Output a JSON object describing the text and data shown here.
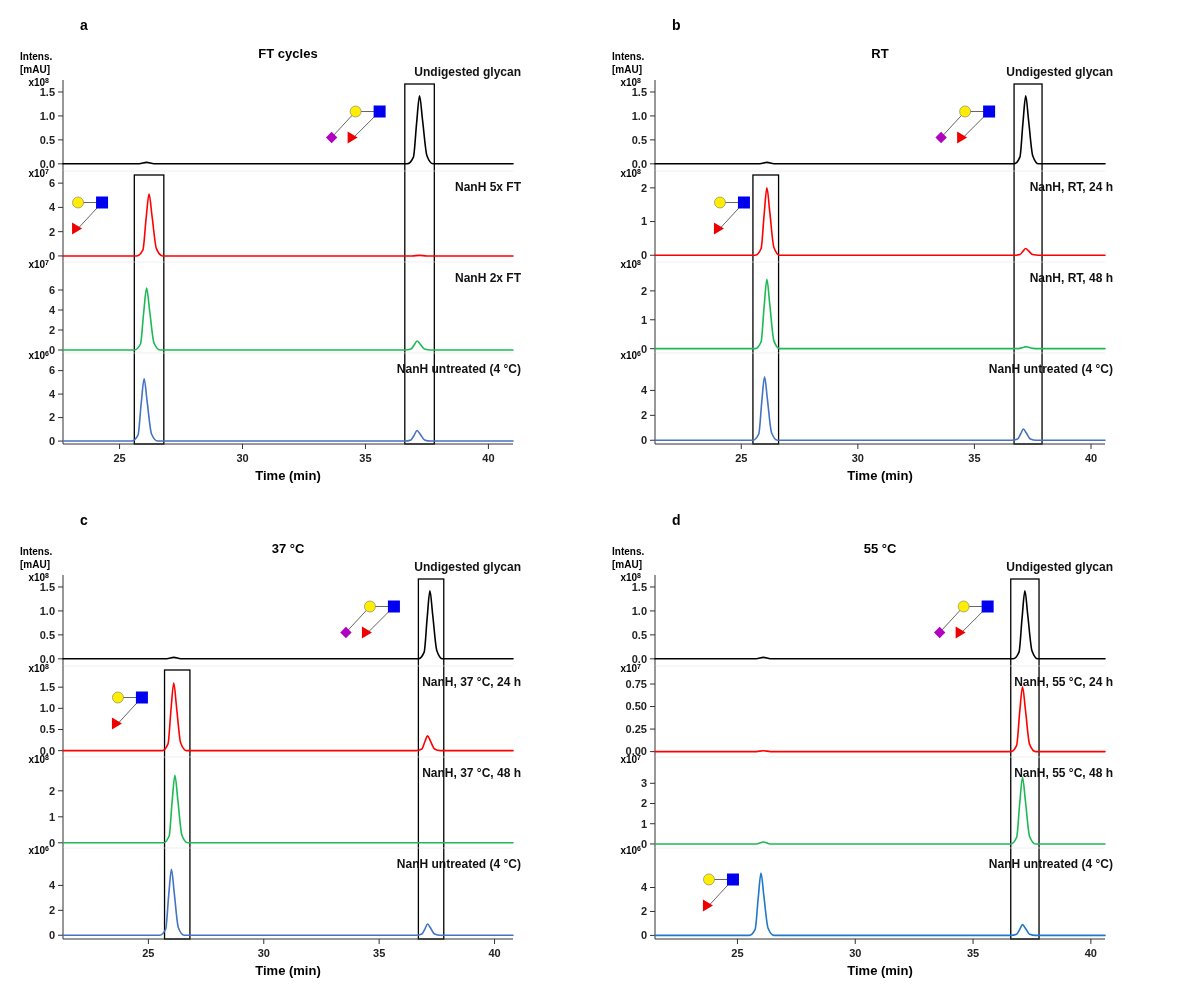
{
  "chart_data": [
    {
      "type": "line",
      "title": "FT cycles",
      "annotations": [
        "a",
        "Intens. [mAU]"
      ],
      "ylabel": "x10$^{8}$",
      "xlim": [
        22.7,
        41
      ],
      "ylim": [
        -0.15,
        1.75
      ],
      "yticks": [
        {
          "value": 0,
          "label": "0.0"
        },
        {
          "value": 0.5,
          "label": "0.5"
        },
        {
          "value": 1,
          "label": "1.0"
        },
        {
          "value": 1.5,
          "label": "1.5"
        }
      ],
      "tick_labels": "y",
      "x": [
        22.7,
        25.8,
        26.1,
        26.4,
        36.7,
        36.95,
        37.08,
        37.2,
        37.32,
        37.5,
        37.75,
        41
      ],
      "series": [
        {
          "name": "Undigested glycan",
          "color": "#000000",
          "values": [
            0,
            0,
            0.03,
            0,
            0,
            0.14,
            0.85,
            1.42,
            0.92,
            0.17,
            0,
            0
          ]
        }
      ]
    },
    {
      "type": "line",
      "ylabel": "x10$^{7}$",
      "xlim": [
        22.7,
        41
      ],
      "ylim": [
        -0.5,
        7
      ],
      "yticks": [
        0,
        2,
        4,
        6
      ],
      "tick_labels": "y",
      "x": [
        22.7,
        25.7,
        25.95,
        26.08,
        26.2,
        26.32,
        26.5,
        26.75,
        36.9,
        37.2,
        37.5,
        41
      ],
      "series": [
        {
          "name": "NanH 5x FT",
          "color": "#ff0000",
          "values": [
            0,
            0,
            0.5,
            3.1,
            5.1,
            3.3,
            0.6,
            0,
            0,
            0.05,
            0,
            0
          ]
        }
      ]
    },
    {
      "type": "line",
      "ylabel": "x10$^{7}$",
      "xlim": [
        22.7,
        41
      ],
      "ylim": [
        -0.3,
        8.8
      ],
      "yticks": [
        0,
        2,
        4,
        6
      ],
      "tick_labels": "y",
      "x": [
        22.7,
        25.6,
        25.85,
        25.98,
        26.1,
        26.22,
        26.4,
        26.65,
        36.6,
        36.85,
        36.98,
        37.1,
        37.22,
        37.4,
        37.65,
        41
      ],
      "series": [
        {
          "name": "NanH 2x FT",
          "color": "#1db954",
          "values": [
            0,
            0,
            0.6,
            3.7,
            6.2,
            4.0,
            0.7,
            0,
            0,
            0.1,
            0.5,
            0.9,
            0.6,
            0.1,
            0,
            0
          ]
        }
      ]
    },
    {
      "type": "line",
      "ylabel": "x10$^{6}$",
      "xlabel": "Time (min)",
      "xlim": [
        22.7,
        41
      ],
      "ylim": [
        -0.25,
        7.5
      ],
      "yticks": [
        0,
        2,
        4,
        6
      ],
      "xticks": [
        25,
        30,
        35,
        40
      ],
      "x": [
        22.7,
        25.5,
        25.75,
        25.88,
        26.0,
        26.12,
        26.3,
        26.55,
        36.6,
        36.85,
        36.98,
        37.1,
        37.22,
        37.4,
        37.65,
        41
      ],
      "series": [
        {
          "name": "NanH untreated (4 °C)",
          "color": "#4472c4",
          "values": [
            0,
            0,
            0.5,
            3.2,
            5.3,
            3.4,
            0.6,
            0,
            0,
            0.1,
            0.5,
            0.9,
            0.6,
            0.1,
            0,
            0
          ]
        }
      ]
    },
    {
      "type": "line",
      "title": "RT",
      "annotations": [
        "b",
        "Intens. [mAU]"
      ],
      "ylabel": "x10$^{8}$",
      "xlim": [
        21.3,
        40.6
      ],
      "ylim": [
        -0.15,
        1.75
      ],
      "yticks": [
        {
          "value": 0,
          "label": "0.0"
        },
        {
          "value": 0.5,
          "label": "0.5"
        },
        {
          "value": 1,
          "label": "1.0"
        },
        {
          "value": 1.5,
          "label": "1.5"
        }
      ],
      "tick_labels": "y",
      "x": [
        21.3,
        25.8,
        26.1,
        26.4,
        36.7,
        36.95,
        37.08,
        37.2,
        37.32,
        37.5,
        37.75,
        40.6
      ],
      "series": [
        {
          "name": "Undigested glycan",
          "color": "#000000",
          "values": [
            0,
            0,
            0.03,
            0,
            0,
            0.14,
            0.85,
            1.42,
            0.92,
            0.17,
            0,
            0
          ]
        }
      ]
    },
    {
      "type": "line",
      "ylabel": "x10$^{8}$",
      "xlim": [
        21.3,
        40.6
      ],
      "ylim": [
        -0.2,
        2.5
      ],
      "yticks": [
        0,
        1,
        2
      ],
      "tick_labels": "y",
      "x": [
        21.3,
        25.6,
        25.85,
        25.98,
        26.1,
        26.22,
        26.4,
        26.65,
        36.7,
        36.95,
        37.08,
        37.2,
        37.32,
        37.5,
        37.75,
        40.6
      ],
      "series": [
        {
          "name": "NanH, RT, 24 h",
          "color": "#ff0000",
          "values": [
            0,
            0,
            0.2,
            1.2,
            2.0,
            1.3,
            0.23,
            0,
            0,
            0.02,
            0.12,
            0.2,
            0.13,
            0.02,
            0,
            0
          ]
        }
      ]
    },
    {
      "type": "line",
      "ylabel": "x10$^{8}$",
      "xlim": [
        21.3,
        40.6
      ],
      "ylim": [
        -0.15,
        3.0
      ],
      "yticks": [
        0,
        1,
        2
      ],
      "tick_labels": "y",
      "x": [
        21.3,
        25.6,
        25.85,
        25.98,
        26.1,
        26.22,
        26.4,
        26.65,
        36.7,
        36.95,
        37.08,
        37.2,
        37.32,
        37.5,
        37.75,
        40.6
      ],
      "series": [
        {
          "name": "NanH, RT, 48 h",
          "color": "#1db954",
          "values": [
            0,
            0,
            0.24,
            1.45,
            2.4,
            1.55,
            0.27,
            0,
            0,
            0.01,
            0.04,
            0.07,
            0.05,
            0.01,
            0,
            0
          ]
        }
      ]
    },
    {
      "type": "line",
      "ylabel": "x10$^{6}$",
      "xlabel": "Time (min)",
      "xlim": [
        21.3,
        40.6
      ],
      "ylim": [
        -0.3,
        7
      ],
      "yticks": [
        0,
        2,
        4
      ],
      "xticks": [
        25,
        30,
        35,
        40
      ],
      "x": [
        21.3,
        25.5,
        25.75,
        25.88,
        26.0,
        26.12,
        26.3,
        26.55,
        36.6,
        36.85,
        36.98,
        37.1,
        37.22,
        37.4,
        37.65,
        40.6
      ],
      "series": [
        {
          "name": "NanH untreated (4 °C)",
          "color": "#4472c4",
          "values": [
            0,
            0,
            0.5,
            3.1,
            5.1,
            3.3,
            0.6,
            0,
            0,
            0.1,
            0.5,
            0.9,
            0.6,
            0.1,
            0,
            0
          ]
        }
      ]
    },
    {
      "type": "line",
      "title": "37 °C",
      "annotations": [
        "c",
        "Intens. [mAU]"
      ],
      "ylabel": "x10$^{8}$",
      "xlim": [
        21.3,
        40.8
      ],
      "ylim": [
        -0.15,
        1.75
      ],
      "yticks": [
        {
          "value": 0,
          "label": "0.0"
        },
        {
          "value": 0.5,
          "label": "0.5"
        },
        {
          "value": 1,
          "label": "1.0"
        },
        {
          "value": 1.5,
          "label": "1.5"
        }
      ],
      "tick_labels": "y",
      "x": [
        21.3,
        25.8,
        26.1,
        26.4,
        36.7,
        36.95,
        37.08,
        37.2,
        37.32,
        37.5,
        37.75,
        40.8
      ],
      "series": [
        {
          "name": "Undigested glycan",
          "color": "#000000",
          "values": [
            0,
            0,
            0.03,
            0,
            0,
            0.14,
            0.85,
            1.42,
            0.92,
            0.17,
            0,
            0
          ]
        }
      ]
    },
    {
      "type": "line",
      "ylabel": "x10$^{8}$",
      "xlim": [
        21.3,
        40.8
      ],
      "ylim": [
        -0.15,
        2.0
      ],
      "yticks": [
        {
          "value": 0,
          "label": "0.0"
        },
        {
          "value": 0.5,
          "label": "0.5"
        },
        {
          "value": 1,
          "label": "1.0"
        },
        {
          "value": 1.5,
          "label": "1.5"
        }
      ],
      "tick_labels": "y",
      "x": [
        21.3,
        25.6,
        25.85,
        25.98,
        26.1,
        26.22,
        26.4,
        26.65,
        36.6,
        36.85,
        36.98,
        37.1,
        37.22,
        37.4,
        37.65,
        40.8
      ],
      "series": [
        {
          "name": "NanH, 37 °C, 24 h",
          "color": "#ff0000",
          "values": [
            0,
            0,
            0.16,
            0.97,
            1.6,
            1.03,
            0.18,
            0,
            0,
            0.04,
            0.21,
            0.35,
            0.23,
            0.04,
            0,
            0
          ]
        }
      ]
    },
    {
      "type": "line",
      "ylabel": "x10$^{8}$",
      "xlim": [
        21.3,
        40.8
      ],
      "ylim": [
        -0.2,
        3.3
      ],
      "yticks": [
        0,
        1,
        2
      ],
      "tick_labels": "y",
      "x": [
        21.3,
        25.65,
        25.9,
        26.03,
        26.15,
        26.27,
        26.45,
        26.7,
        40.8
      ],
      "series": [
        {
          "name": "NanH, 37 °C, 48 h",
          "color": "#1db954",
          "values": [
            0,
            0,
            0.26,
            1.6,
            2.6,
            1.7,
            0.3,
            0,
            0
          ]
        }
      ]
    },
    {
      "type": "line",
      "ylabel": "x10$^{6}$",
      "xlabel": "Time (min)",
      "xlim": [
        21.3,
        40.8
      ],
      "ylim": [
        -0.3,
        7
      ],
      "yticks": [
        0,
        2,
        4
      ],
      "xticks": [
        25,
        30,
        35,
        40
      ],
      "x": [
        21.3,
        25.5,
        25.75,
        25.88,
        26.0,
        26.12,
        26.3,
        26.55,
        36.6,
        36.85,
        36.98,
        37.1,
        37.22,
        37.4,
        37.65,
        40.8
      ],
      "series": [
        {
          "name": "NanH untreated (4 °C)",
          "color": "#4472c4",
          "values": [
            0,
            0,
            0.5,
            3.2,
            5.3,
            3.4,
            0.6,
            0,
            0,
            0.1,
            0.5,
            0.9,
            0.6,
            0.1,
            0,
            0
          ]
        }
      ]
    },
    {
      "type": "line",
      "title": "55 °C",
      "annotations": [
        "d",
        "Intens. [mAU]"
      ],
      "ylabel": "x10$^{8}$",
      "xlim": [
        21.5,
        40.6
      ],
      "ylim": [
        -0.15,
        1.75
      ],
      "yticks": [
        {
          "value": 0,
          "label": "0.0"
        },
        {
          "value": 0.5,
          "label": "0.5"
        },
        {
          "value": 1,
          "label": "1.0"
        },
        {
          "value": 1.5,
          "label": "1.5"
        }
      ],
      "tick_labels": "y",
      "x": [
        21.5,
        25.8,
        26.1,
        26.4,
        36.7,
        36.95,
        37.08,
        37.2,
        37.32,
        37.5,
        37.75,
        40.6
      ],
      "series": [
        {
          "name": "Undigested glycan",
          "color": "#000000",
          "values": [
            0,
            0,
            0.03,
            0,
            0,
            0.14,
            0.85,
            1.42,
            0.92,
            0.17,
            0,
            0
          ]
        }
      ]
    },
    {
      "type": "line",
      "ylabel": "x10$^{7}$",
      "xlim": [
        21.5,
        40.6
      ],
      "ylim": [
        -0.06,
        0.95
      ],
      "yticks": [
        {
          "value": 0,
          "label": "0.00"
        },
        {
          "value": 0.25,
          "label": "0.25"
        },
        {
          "value": 0.5,
          "label": "0.50"
        },
        {
          "value": 0.75,
          "label": "0.75"
        }
      ],
      "tick_labels": "y",
      "x": [
        21.5,
        25.8,
        26.1,
        26.4,
        36.6,
        36.85,
        36.98,
        37.1,
        37.22,
        37.4,
        37.65,
        40.6
      ],
      "series": [
        {
          "name": "NanH, 55 °C, 24 h",
          "color": "#ff0000",
          "values": [
            0,
            0,
            0.01,
            0,
            0,
            0.07,
            0.44,
            0.72,
            0.47,
            0.08,
            0,
            0
          ]
        }
      ]
    },
    {
      "type": "line",
      "ylabel": "x10$^{7}$",
      "xlim": [
        21.5,
        40.6
      ],
      "ylim": [
        -0.2,
        4.3
      ],
      "yticks": [
        0,
        1,
        2,
        3
      ],
      "tick_labels": "y",
      "x": [
        21.5,
        25.8,
        26.1,
        26.4,
        36.6,
        36.85,
        36.98,
        37.1,
        37.22,
        37.4,
        37.65,
        40.6
      ],
      "series": [
        {
          "name": "NanH, 55 °C, 48 h",
          "color": "#1db954",
          "values": [
            0,
            0,
            0.1,
            0,
            0,
            0.33,
            2.0,
            3.3,
            2.15,
            0.37,
            0,
            0
          ]
        }
      ]
    },
    {
      "type": "line",
      "ylabel": "x10$^{6}$",
      "xlabel": "Time (min)",
      "xlim": [
        21.5,
        40.6
      ],
      "ylim": [
        -0.3,
        7.3
      ],
      "yticks": [
        0,
        2,
        4
      ],
      "xticks": [
        25,
        30,
        35,
        40
      ],
      "x": [
        21.5,
        25.5,
        25.75,
        25.88,
        26.0,
        26.12,
        26.3,
        26.55,
        36.6,
        36.85,
        36.98,
        37.1,
        37.22,
        37.4,
        37.65,
        40.6
      ],
      "series": [
        {
          "name": "NanH untreated (4 °C)",
          "color": "#1f78c8",
          "values": [
            0,
            0,
            0.5,
            3.1,
            5.2,
            3.3,
            0.6,
            0,
            0,
            0.1,
            0.5,
            0.9,
            0.6,
            0.1,
            0,
            0
          ]
        }
      ]
    }
  ]
}
